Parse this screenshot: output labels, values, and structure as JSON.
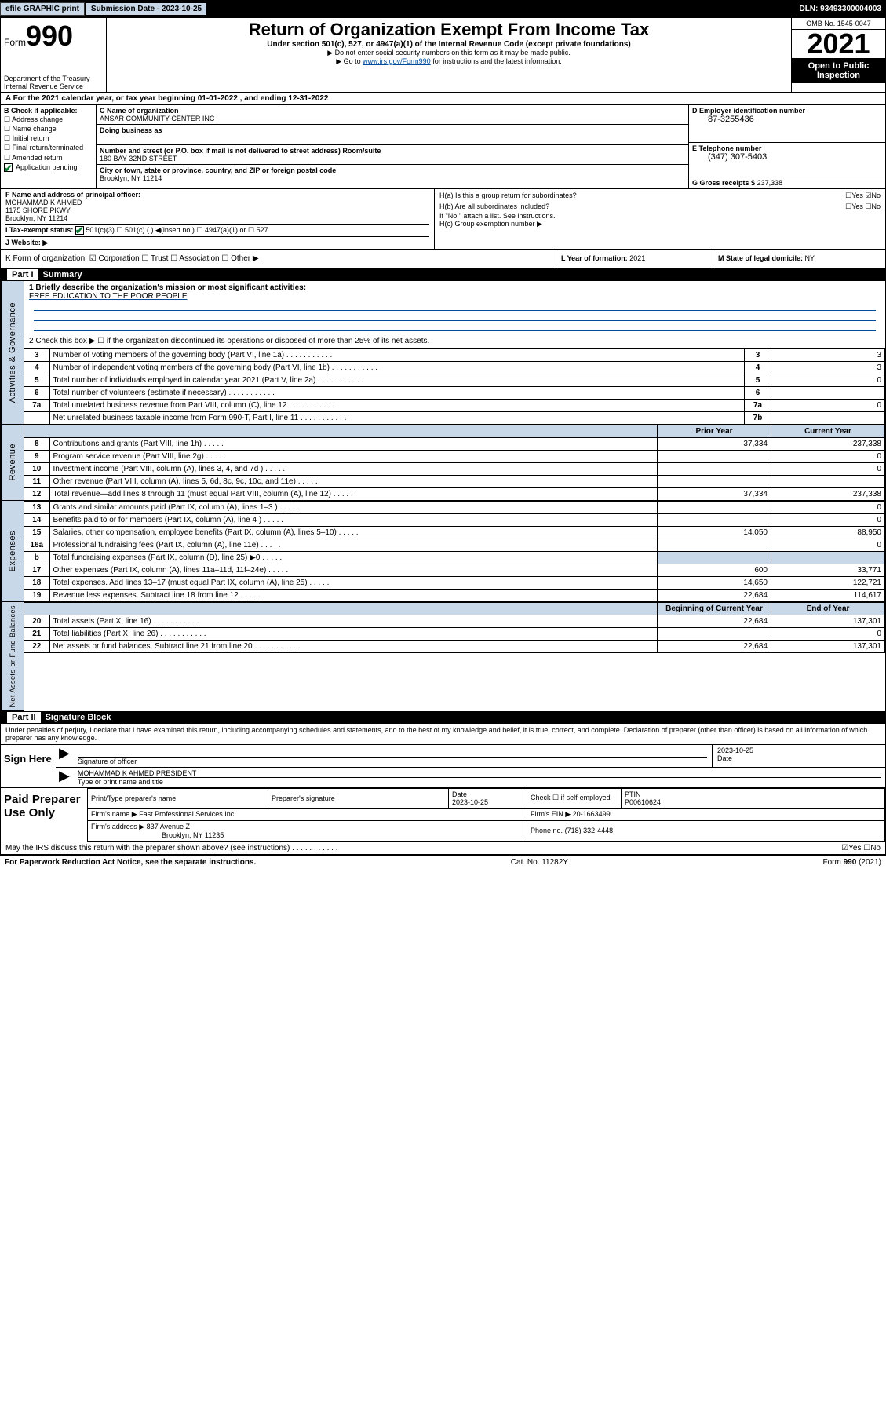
{
  "topbar": {
    "efile_btn": "efile GRAPHIC print",
    "sub_label": "Submission Date - 2023-10-25",
    "dln": "DLN: 93493300004003"
  },
  "header": {
    "form_word": "Form",
    "form_num": "990",
    "dept": "Department of the Treasury",
    "irs": "Internal Revenue Service",
    "title": "Return of Organization Exempt From Income Tax",
    "sub": "Under section 501(c), 527, or 4947(a)(1) of the Internal Revenue Code (except private foundations)",
    "note1": "▶ Do not enter social security numbers on this form as it may be made public.",
    "note2_a": "▶ Go to ",
    "note2_link": "www.irs.gov/Form990",
    "note2_b": " for instructions and the latest information.",
    "omb": "OMB No. 1545-0047",
    "year": "2021",
    "openpub": "Open to Public Inspection"
  },
  "rowA": "A For the 2021 calendar year, or tax year beginning 01-01-2022   , and ending 12-31-2022",
  "blockB": {
    "title": "B Check if applicable:",
    "opts": [
      "☐ Address change",
      "☐ Name change",
      "☐ Initial return",
      "☐ Final return/terminated",
      "☐ Amended return",
      "  Application pending"
    ]
  },
  "blockC": {
    "name_lbl": "C Name of organization",
    "name": "ANSAR COMMUNITY CENTER INC",
    "dba_lbl": "Doing business as",
    "addr_lbl": "Number and street (or P.O. box if mail is not delivered to street address)     Room/suite",
    "addr": "180 BAY 32ND STREET",
    "city_lbl": "City or town, state or province, country, and ZIP or foreign postal code",
    "city": "Brooklyn, NY  11214"
  },
  "blockD": {
    "lbl": "D Employer identification number",
    "val": "87-3255436"
  },
  "blockE": {
    "lbl": "E Telephone number",
    "val": "(347) 307-5403"
  },
  "blockG": {
    "lbl": "G Gross receipts $",
    "val": "237,338"
  },
  "blockF": {
    "lbl": "F  Name and address of principal officer:",
    "name": "MOHAMMAD K AHMED",
    "addr1": "1175 SHORE PKWY",
    "addr2": "Brooklyn, NY  11214"
  },
  "blockH": {
    "ha": "H(a)  Is this a group return for subordinates?",
    "ha_ans": "☐Yes ☑No",
    "hb": "H(b)  Are all subordinates included?",
    "hb_ans": "☐Yes ☐No",
    "hb_note": "If \"No,\" attach a list. See instructions.",
    "hc": "H(c)  Group exemption number ▶"
  },
  "rowI": {
    "lbl": "I    Tax-exempt status:",
    "opts": "501(c)(3)    ☐  501(c) (  ) ◀(insert no.)    ☐ 4947(a)(1) or  ☐ 527"
  },
  "rowJ": "J    Website: ▶",
  "rowK": {
    "left": "K Form of organization:  ☑ Corporation ☐ Trust ☐ Association ☐ Other ▶",
    "mid_lbl": "L Year of formation:",
    "mid_val": "2021",
    "right_lbl": "M State of legal domicile:",
    "right_val": "NY"
  },
  "part1": {
    "bar": "Part I",
    "title": "Summary"
  },
  "summary": {
    "side_labels": [
      "Activities & Governance",
      "Revenue",
      "Expenses",
      "Net Assets or Fund Balances"
    ],
    "line1": "1   Briefly describe the organization's mission or most significant activities:",
    "line1_text": "FREE EDUCATION TO THE POOR PEOPLE",
    "line2": "2   Check this box ▶ ☐  if the organization discontinued its operations or disposed of more than 25% of its net assets.",
    "rows_block1": [
      {
        "n": "3",
        "d": "Number of voting members of the governing body (Part VI, line 1a)",
        "box": "3",
        "v": "3"
      },
      {
        "n": "4",
        "d": "Number of independent voting members of the governing body (Part VI, line 1b)",
        "box": "4",
        "v": "3"
      },
      {
        "n": "5",
        "d": "Total number of individuals employed in calendar year 2021 (Part V, line 2a)",
        "box": "5",
        "v": "0"
      },
      {
        "n": "6",
        "d": "Total number of volunteers (estimate if necessary)",
        "box": "6",
        "v": ""
      },
      {
        "n": "7a",
        "d": "Total unrelated business revenue from Part VIII, column (C), line 12",
        "box": "7a",
        "v": "0"
      },
      {
        "n": "",
        "d": "Net unrelated business taxable income from Form 990-T, Part I, line 11",
        "box": "7b",
        "v": ""
      }
    ],
    "hdr_prior": "Prior Year",
    "hdr_curr": "Current Year",
    "rows_rev": [
      {
        "n": "8",
        "d": "Contributions and grants (Part VIII, line 1h)",
        "p": "37,334",
        "c": "237,338"
      },
      {
        "n": "9",
        "d": "Program service revenue (Part VIII, line 2g)",
        "p": "",
        "c": "0"
      },
      {
        "n": "10",
        "d": "Investment income (Part VIII, column (A), lines 3, 4, and 7d )",
        "p": "",
        "c": "0"
      },
      {
        "n": "11",
        "d": "Other revenue (Part VIII, column (A), lines 5, 6d, 8c, 9c, 10c, and 11e)",
        "p": "",
        "c": ""
      },
      {
        "n": "12",
        "d": "Total revenue—add lines 8 through 11 (must equal Part VIII, column (A), line 12)",
        "p": "37,334",
        "c": "237,338"
      }
    ],
    "rows_exp": [
      {
        "n": "13",
        "d": "Grants and similar amounts paid (Part IX, column (A), lines 1–3 )",
        "p": "",
        "c": "0"
      },
      {
        "n": "14",
        "d": "Benefits paid to or for members (Part IX, column (A), line 4 )",
        "p": "",
        "c": "0"
      },
      {
        "n": "15",
        "d": "Salaries, other compensation, employee benefits (Part IX, column (A), lines 5–10)",
        "p": "14,050",
        "c": "88,950"
      },
      {
        "n": "16a",
        "d": "Professional fundraising fees (Part IX, column (A), line 11e)",
        "p": "",
        "c": "0"
      },
      {
        "n": "b",
        "d": "Total fundraising expenses (Part IX, column (D), line 25) ▶0",
        "p": "shade",
        "c": "shade"
      },
      {
        "n": "17",
        "d": "Other expenses (Part IX, column (A), lines 11a–11d, 11f–24e)",
        "p": "600",
        "c": "33,771"
      },
      {
        "n": "18",
        "d": "Total expenses. Add lines 13–17 (must equal Part IX, column (A), line 25)",
        "p": "14,650",
        "c": "122,721"
      },
      {
        "n": "19",
        "d": "Revenue less expenses. Subtract line 18 from line 12",
        "p": "22,684",
        "c": "114,617"
      }
    ],
    "hdr_beg": "Beginning of Current Year",
    "hdr_end": "End of Year",
    "rows_net": [
      {
        "n": "20",
        "d": "Total assets (Part X, line 16)",
        "p": "22,684",
        "c": "137,301"
      },
      {
        "n": "21",
        "d": "Total liabilities (Part X, line 26)",
        "p": "",
        "c": "0"
      },
      {
        "n": "22",
        "d": "Net assets or fund balances. Subtract line 21 from line 20",
        "p": "22,684",
        "c": "137,301"
      }
    ]
  },
  "part2": {
    "bar": "Part II",
    "title": "Signature Block"
  },
  "penalties": "Under penalties of perjury, I declare that I have examined this return, including accompanying schedules and statements, and to the best of my knowledge and belief, it is true, correct, and complete. Declaration of preparer (other than officer) is based on all information of which preparer has any knowledge.",
  "sign": {
    "here": "Sign Here",
    "sig_lbl": "Signature of officer",
    "date_lbl": "Date",
    "date_val": "2023-10-25",
    "name": "MOHAMMAD K AHMED  PRESIDENT",
    "name_lbl": "Type or print name and title"
  },
  "paid": {
    "title": "Paid Preparer Use Only",
    "h1": "Print/Type preparer's name",
    "h2": "Preparer's signature",
    "h3": "Date",
    "h3v": "2023-10-25",
    "h4": "Check ☐ if self-employed",
    "h5": "PTIN",
    "h5v": "P00610624",
    "firm_lbl": "Firm's name    ▶",
    "firm": "Fast Professional Services Inc",
    "ein_lbl": "Firm's EIN ▶",
    "ein": "20-1663499",
    "addr_lbl": "Firm's address ▶",
    "addr1": "837 Avenue Z",
    "addr2": "Brooklyn, NY  11235",
    "phone_lbl": "Phone no.",
    "phone": "(718) 332-4448"
  },
  "may_irs": "May the IRS discuss this return with the preparer shown above? (see instructions)",
  "may_ans": "☑Yes  ☐No",
  "footer": {
    "left": "For Paperwork Reduction Act Notice, see the separate instructions.",
    "mid": "Cat. No. 11282Y",
    "right": "Form 990 (2021)"
  }
}
